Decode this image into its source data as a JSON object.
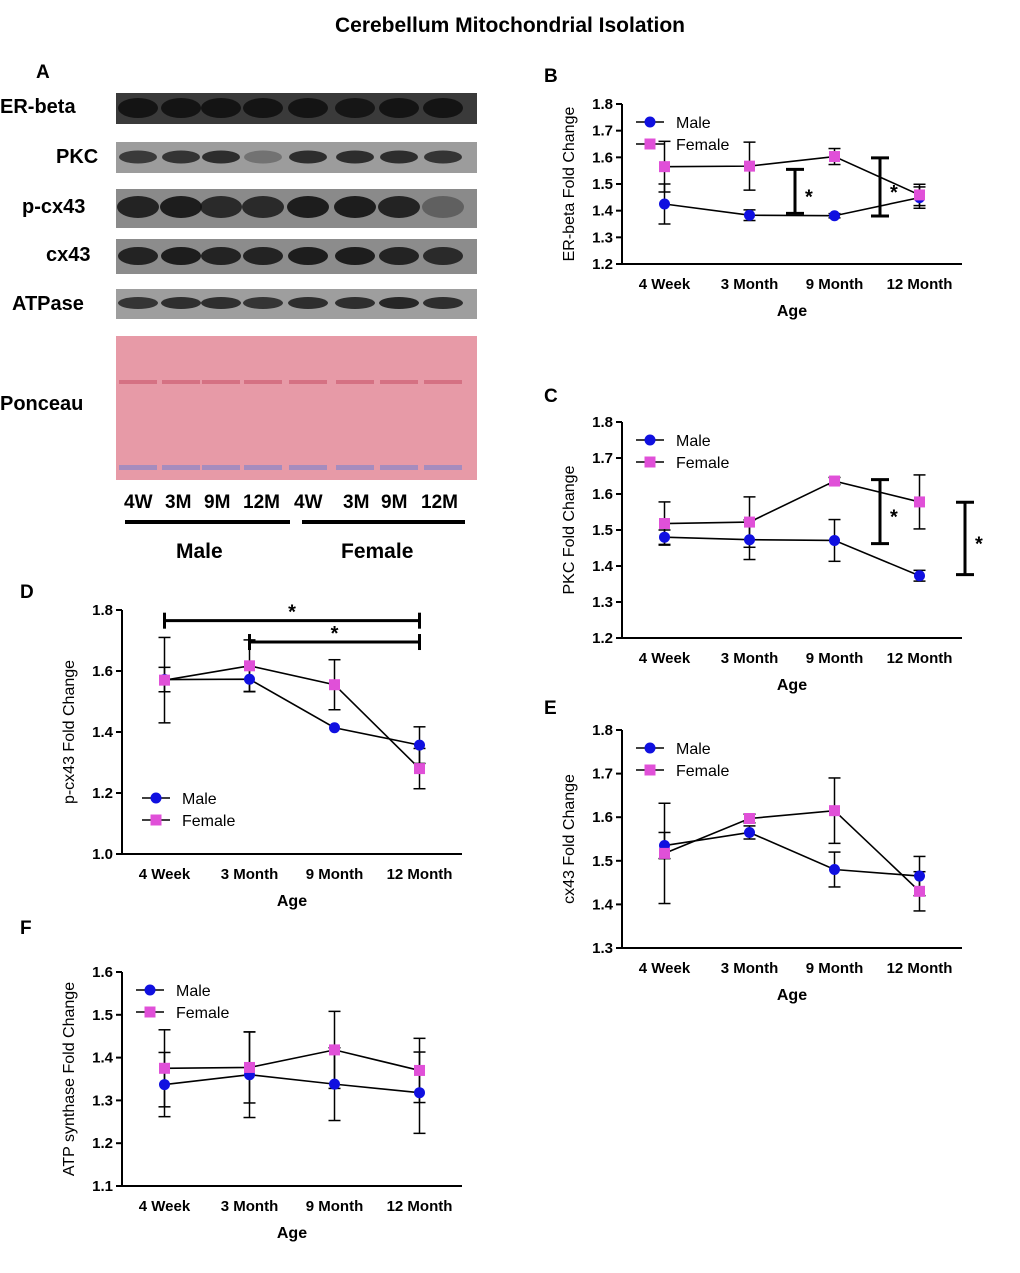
{
  "figure_title": "Cerebellum Mitochondrial Isolation",
  "panel_a": {
    "letter": "A",
    "rows": [
      "ER-beta",
      "PKC",
      "p-cx43",
      "cx43",
      "ATPase",
      "Ponceau"
    ],
    "lanes": [
      "4W",
      "3M",
      "9M",
      "12M",
      "4W",
      "3M",
      "9M",
      "12M"
    ],
    "groups": [
      "Male",
      "Female"
    ]
  },
  "colors": {
    "male": "#1010e0",
    "female": "#e050d8",
    "line": "#000000",
    "ponceau": "#e89aa8"
  },
  "chart_data": [
    {
      "id": "B",
      "letter": "B",
      "type": "line",
      "categories": [
        "4 Week",
        "3 Month",
        "9 Month",
        "12 Month"
      ],
      "xlabel": "Age",
      "ylabel": "ER-beta Fold Change",
      "ylim": [
        1.2,
        1.8
      ],
      "yticks": [
        "1.2",
        "1.3",
        "1.4",
        "1.5",
        "1.6",
        "1.7",
        "1.8"
      ],
      "legend": "top-left",
      "series": [
        {
          "name": "Male",
          "values": [
            1.425,
            1.383,
            1.381,
            1.449
          ],
          "errors": [
            0.075,
            0.02,
            0.008,
            0.04
          ]
        },
        {
          "name": "Female",
          "values": [
            1.565,
            1.567,
            1.603,
            1.459
          ],
          "errors": [
            0.095,
            0.09,
            0.03,
            0.04
          ]
        }
      ],
      "significance": [
        {
          "label": "*",
          "between": 1.5,
          "range": [
            1.39,
            1.555
          ]
        },
        {
          "label": "*",
          "between": 2.5,
          "range": [
            1.38,
            1.598
          ]
        }
      ]
    },
    {
      "id": "C",
      "letter": "C",
      "type": "line",
      "categories": [
        "4 Week",
        "3 Month",
        "9 Month",
        "12 Month"
      ],
      "xlabel": "Age",
      "ylabel": "PKC Fold Change",
      "ylim": [
        1.2,
        1.8
      ],
      "yticks": [
        "1.2",
        "1.3",
        "1.4",
        "1.5",
        "1.6",
        "1.7",
        "1.8"
      ],
      "legend": "top-left",
      "series": [
        {
          "name": "Male",
          "values": [
            1.48,
            1.473,
            1.471,
            1.373
          ],
          "errors": [
            0.02,
            0.055,
            0.058,
            0.015
          ]
        },
        {
          "name": "Female",
          "values": [
            1.518,
            1.522,
            1.636,
            1.578
          ],
          "errors": [
            0.06,
            0.07,
            0.01,
            0.075
          ]
        }
      ],
      "significance": [
        {
          "label": "*",
          "between": 2.5,
          "range": [
            1.462,
            1.64
          ]
        },
        {
          "label": "*",
          "between": 3.5,
          "range": [
            1.376,
            1.577
          ]
        }
      ]
    },
    {
      "id": "D",
      "letter": "D",
      "type": "line",
      "categories": [
        "4 Week",
        "3 Month",
        "9 Month",
        "12 Month"
      ],
      "xlabel": "Age",
      "ylabel": "p-cx43 Fold Change",
      "ylim": [
        1.0,
        1.8
      ],
      "yticks": [
        "1.0",
        "1.2",
        "1.4",
        "1.6",
        "1.8"
      ],
      "legend": "bottom-left",
      "series": [
        {
          "name": "Male",
          "values": [
            1.572,
            1.573,
            1.414,
            1.357
          ],
          "errors": [
            0.04,
            0.04,
            0.0,
            0.06
          ]
        },
        {
          "name": "Female",
          "values": [
            1.57,
            1.617,
            1.555,
            1.28
          ],
          "errors": [
            0.14,
            0.085,
            0.082,
            0.066
          ]
        }
      ],
      "brackets": [
        {
          "label": "*",
          "from": 0,
          "to": 3,
          "y": 1.765
        },
        {
          "label": "*",
          "from": 1,
          "to": 3,
          "y": 1.695
        }
      ]
    },
    {
      "id": "E",
      "letter": "E",
      "type": "line",
      "categories": [
        "4 Week",
        "3 Month",
        "9 Month",
        "12 Month"
      ],
      "xlabel": "Age",
      "ylabel": "cx43 Fold Change",
      "ylim": [
        1.3,
        1.8
      ],
      "yticks": [
        "1.3",
        "1.4",
        "1.5",
        "1.6",
        "1.7",
        "1.8"
      ],
      "legend": "top-left",
      "series": [
        {
          "name": "Male",
          "values": [
            1.535,
            1.565,
            1.48,
            1.465
          ],
          "errors": [
            0.03,
            0.015,
            0.04,
            0.045
          ]
        },
        {
          "name": "Female",
          "values": [
            1.517,
            1.597,
            1.615,
            1.43
          ],
          "errors": [
            0.115,
            0.01,
            0.075,
            0.045
          ]
        }
      ]
    },
    {
      "id": "F",
      "letter": "F",
      "type": "line",
      "categories": [
        "4 Week",
        "3 Month",
        "9 Month",
        "12 Month"
      ],
      "xlabel": "Age",
      "ylabel": "ATP synthase Fold Change",
      "ylim": [
        1.1,
        1.6
      ],
      "yticks": [
        "1.1",
        "1.2",
        "1.3",
        "1.4",
        "1.5",
        "1.6"
      ],
      "legend": "top-left",
      "series": [
        {
          "name": "Male",
          "values": [
            1.337,
            1.36,
            1.338,
            1.318
          ],
          "errors": [
            0.075,
            0.1,
            0.085,
            0.095
          ]
        },
        {
          "name": "Female",
          "values": [
            1.375,
            1.377,
            1.418,
            1.37
          ],
          "errors": [
            0.09,
            0.083,
            0.09,
            0.075
          ]
        }
      ]
    }
  ]
}
